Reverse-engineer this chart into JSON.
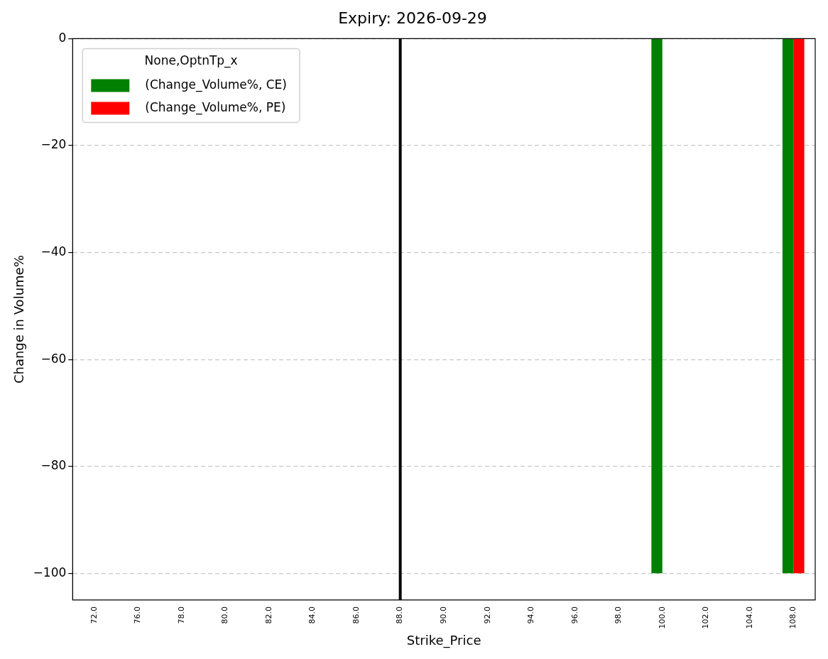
{
  "chart_data": {
    "type": "bar",
    "title": "Expiry: 2026-09-29",
    "xlabel": "Strike_Price",
    "ylabel": "Change in Volume%",
    "legend_title": "None,OptnTp_x",
    "categories": [
      "72.0",
      "76.0",
      "78.0",
      "80.0",
      "82.0",
      "84.0",
      "86.0",
      "88.0",
      "90.0",
      "92.0",
      "94.0",
      "96.0",
      "98.0",
      "100.0",
      "102.0",
      "104.0",
      "108.0"
    ],
    "series": [
      {
        "name": "(Change_Volume%, CE)",
        "color": "#008000",
        "values": [
          null,
          null,
          null,
          null,
          null,
          null,
          null,
          null,
          null,
          null,
          null,
          null,
          null,
          -100,
          null,
          null,
          -100
        ]
      },
      {
        "name": "(Change_Volume%, PE)",
        "color": "#ff0000",
        "values": [
          null,
          null,
          null,
          null,
          null,
          null,
          null,
          null,
          null,
          null,
          null,
          null,
          null,
          null,
          null,
          null,
          -100
        ]
      }
    ],
    "ylim": [
      -105,
      0
    ],
    "yticks": [
      0,
      -20,
      -40,
      -60,
      -80,
      -100
    ],
    "grid": "y",
    "legend": "top left",
    "ref_lines": [
      {
        "axis": "x",
        "value": "88.0",
        "color": "#000000",
        "line_style": "solid"
      }
    ]
  }
}
